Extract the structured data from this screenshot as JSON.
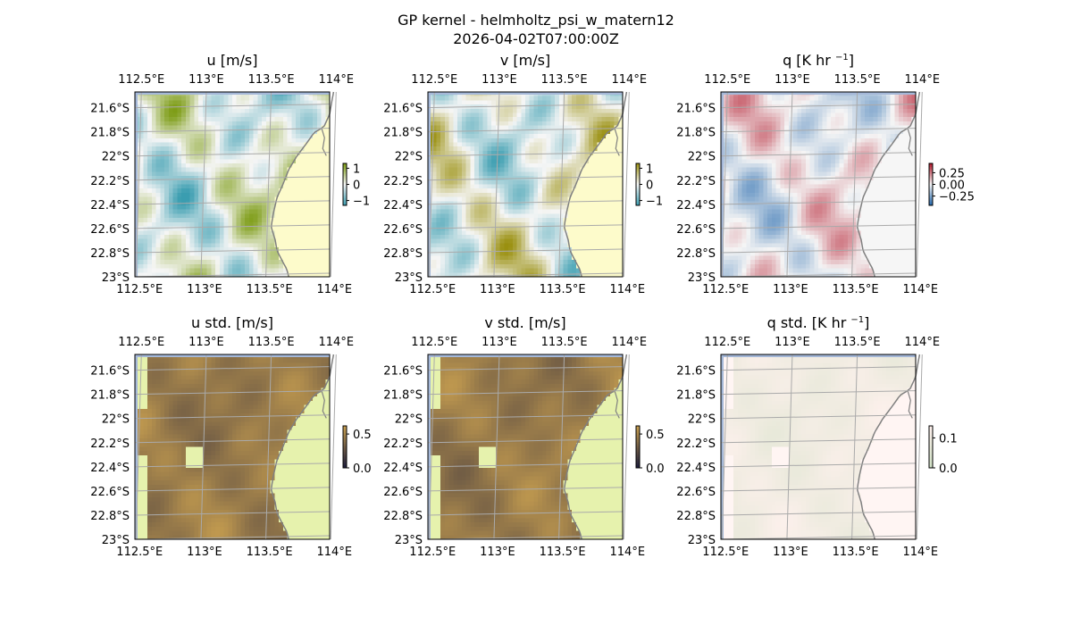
{
  "figure": {
    "title": "GP kernel - helmholtz_psi_w_matern12",
    "subtitle": "2026-04-02T07:00:00Z"
  },
  "map_axes": {
    "lon_ticks": [
      "112.5°E",
      "113°E",
      "113.5°E",
      "114°E"
    ],
    "lon_values": [
      112.5,
      113.0,
      113.5,
      114.0
    ],
    "lat_ticks": [
      "21.6°S",
      "21.8°S",
      "22°S",
      "22.2°S",
      "22.4°S",
      "22.6°S",
      "22.8°S",
      "23°S"
    ],
    "lat_values": [
      -21.6,
      -21.8,
      -22.0,
      -22.2,
      -22.4,
      -22.6,
      -22.8,
      -23.0
    ],
    "lon_range": [
      112.45,
      113.95
    ],
    "lat_range": [
      -23.0,
      -21.47
    ],
    "gridlines": true
  },
  "chart_data": [
    {
      "type": "heatmap",
      "title": "u [m/s]",
      "colormap": "BrBG-like",
      "colors": {
        "neg": "#3a9db0",
        "mid": "#f6f6f6",
        "pos": "#7a9a10",
        "land": "#fdfbcb"
      },
      "clim": [
        -1.3,
        1.3
      ],
      "colorbar_ticks": [
        "1",
        "0",
        "−1"
      ],
      "colorbar_values": [
        1,
        0,
        -1
      ]
    },
    {
      "type": "heatmap",
      "title": "v [m/s]",
      "colormap": "BrBG-like",
      "colors": {
        "neg": "#3a9db0",
        "mid": "#f6f6f6",
        "pos": "#9a9010",
        "land": "#fdfbcb"
      },
      "clim": [
        -1.3,
        1.3
      ],
      "colorbar_ticks": [
        "1",
        "0",
        "−1"
      ],
      "colorbar_values": [
        1,
        0,
        -1
      ]
    },
    {
      "type": "heatmap",
      "title_main": "q [K hr",
      "title_sup": "−1",
      "title_end": "]",
      "colormap": "RdBu-like",
      "colors": {
        "neg": "#2166ac",
        "mid": "#f5f5f5",
        "pos": "#b2182b",
        "land": "#f6f6f6"
      },
      "clim": [
        -0.45,
        0.45
      ],
      "colorbar_ticks": [
        "0.25",
        "0.00",
        "−0.25"
      ],
      "colorbar_values": [
        0.25,
        0,
        -0.25
      ]
    },
    {
      "type": "heatmap",
      "title": "u std. [m/s]",
      "colormap": "gist_earth-like",
      "colors": {
        "low": "#1a1a3a",
        "high": "#c9a050",
        "land": "#e6f2ad"
      },
      "clim": [
        0,
        0.62
      ],
      "colorbar_ticks": [
        "0.5",
        "0.0"
      ],
      "colorbar_values": [
        0.5,
        0
      ]
    },
    {
      "type": "heatmap",
      "title": "v std. [m/s]",
      "colormap": "gist_earth-like",
      "colors": {
        "low": "#1a1a3a",
        "high": "#c9a050",
        "land": "#e6f2ad"
      },
      "clim": [
        0,
        0.62
      ],
      "colorbar_ticks": [
        "0.5",
        "0.0"
      ],
      "colorbar_values": [
        0.5,
        0
      ]
    },
    {
      "type": "heatmap",
      "title_main": "q std. [K hr",
      "title_sup": "−1",
      "title_end": "]",
      "colormap": "green-pink-like",
      "colors": {
        "low": "#cfe0c4",
        "high": "#fff1ee",
        "land": "#fff5f3"
      },
      "clim": [
        0,
        0.14
      ],
      "colorbar_ticks": [
        "0.1",
        "0.0"
      ],
      "colorbar_values": [
        0.1,
        0
      ]
    }
  ],
  "colors": {
    "ocean_edge": "#a5b8d8",
    "coastline": "#808080",
    "grid": "#aaaaaa"
  }
}
